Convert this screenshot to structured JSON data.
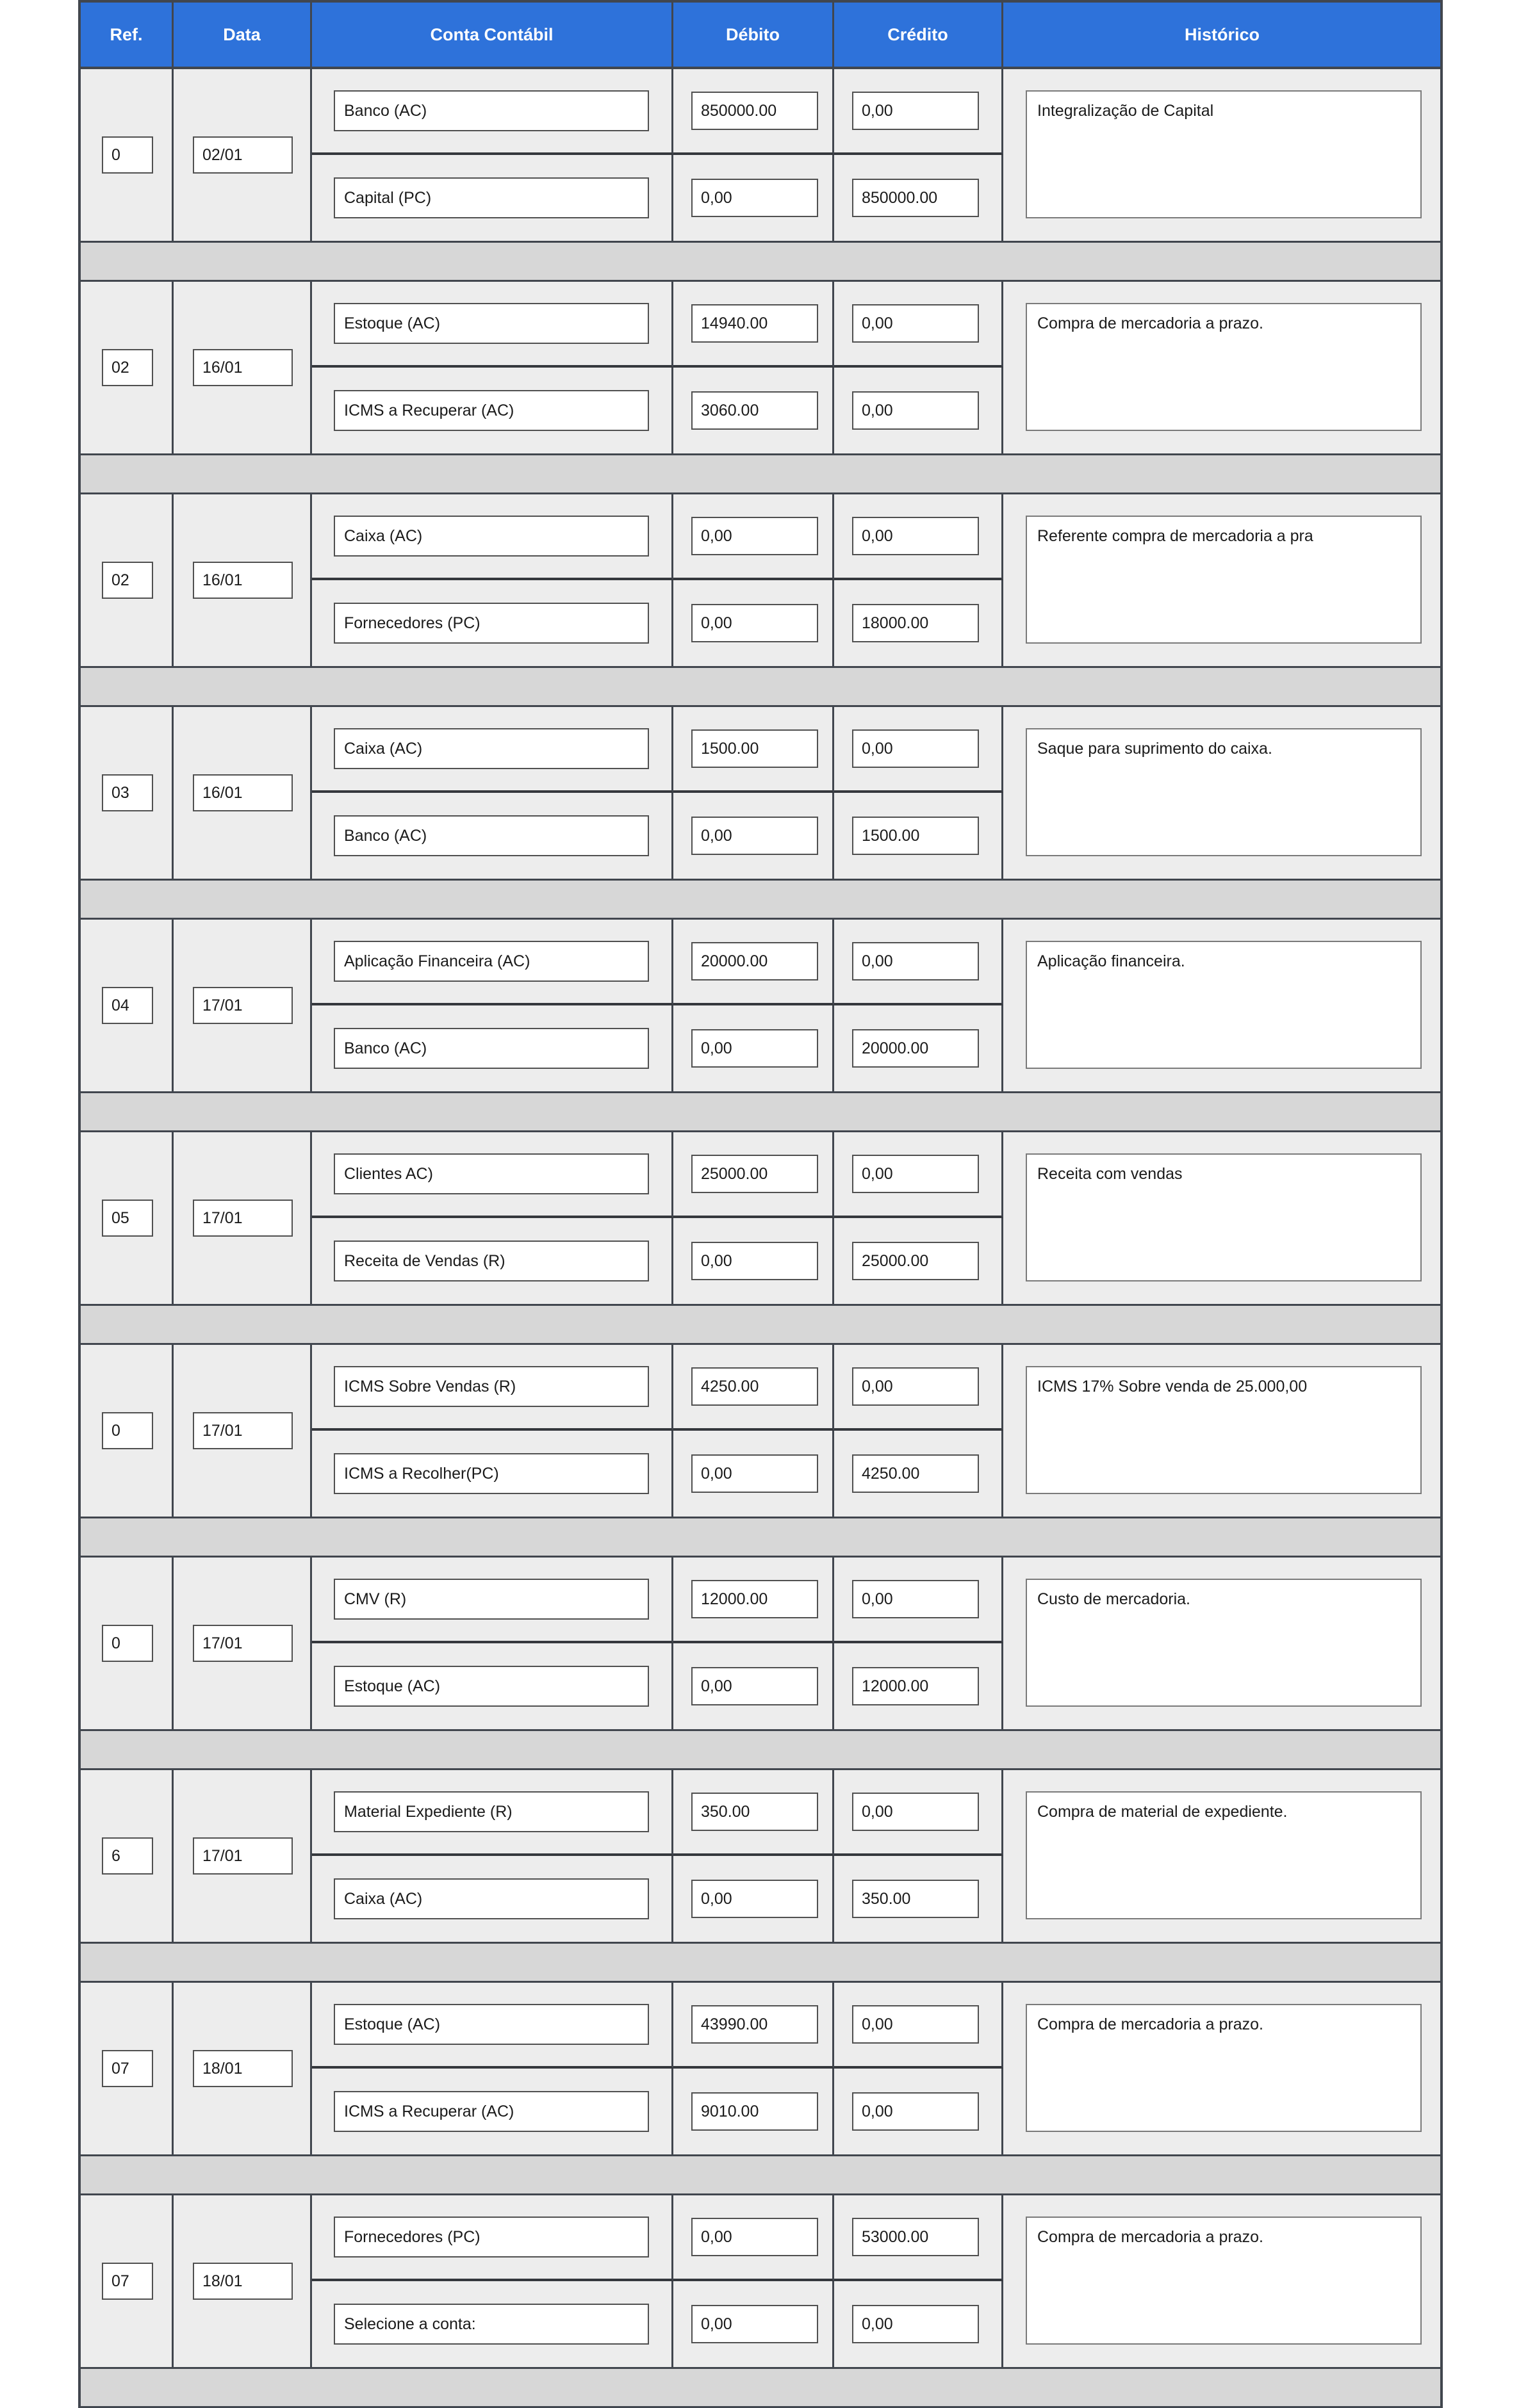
{
  "table": {
    "columns": [
      "Ref.",
      "Data",
      "Conta Contábil",
      "Débito",
      "Crédito",
      "Histórico"
    ],
    "colors": {
      "header_bg": "#2e72da",
      "row_bg": "#ededed",
      "sep_bg": "#d7d7d7",
      "border": "#41464e"
    },
    "entries": [
      {
        "ref": "0",
        "date": "02/01",
        "lines": [
          {
            "account": "Banco (AC)",
            "debit": "850000.00",
            "credit": "0,00"
          },
          {
            "account": "Capital (PC)",
            "debit": "0,00",
            "credit": "850000.00"
          }
        ],
        "history": "Integralização de Capital"
      },
      {
        "ref": "02",
        "date": "16/01",
        "lines": [
          {
            "account": "Estoque (AC)",
            "debit": "14940.00",
            "credit": "0,00"
          },
          {
            "account": "ICMS a Recuperar (AC)",
            "debit": "3060.00",
            "credit": "0,00"
          }
        ],
        "history": "Compra de mercadoria a prazo."
      },
      {
        "ref": "02",
        "date": "16/01",
        "lines": [
          {
            "account": "Caixa (AC)",
            "debit": "0,00",
            "credit": "0,00"
          },
          {
            "account": "Fornecedores (PC)",
            "debit": "0,00",
            "credit": "18000.00"
          }
        ],
        "history": "Referente compra de mercadoria a pra"
      },
      {
        "ref": "03",
        "date": "16/01",
        "lines": [
          {
            "account": "Caixa (AC)",
            "debit": "1500.00",
            "credit": "0,00"
          },
          {
            "account": "Banco (AC)",
            "debit": "0,00",
            "credit": "1500.00"
          }
        ],
        "history": "Saque para suprimento do caixa."
      },
      {
        "ref": "04",
        "date": "17/01",
        "lines": [
          {
            "account": "Aplicação Financeira (AC)",
            "debit": "20000.00",
            "credit": "0,00"
          },
          {
            "account": "Banco (AC)",
            "debit": "0,00",
            "credit": "20000.00"
          }
        ],
        "history": "Aplicação financeira."
      },
      {
        "ref": "05",
        "date": "17/01",
        "lines": [
          {
            "account": "Clientes AC)",
            "debit": "25000.00",
            "credit": "0,00"
          },
          {
            "account": "Receita de Vendas (R)",
            "debit": "0,00",
            "credit": "25000.00"
          }
        ],
        "history": "Receita com vendas"
      },
      {
        "ref": "0",
        "date": "17/01",
        "lines": [
          {
            "account": "ICMS Sobre Vendas (R)",
            "debit": "4250.00",
            "credit": "0,00"
          },
          {
            "account": "ICMS a Recolher(PC)",
            "debit": "0,00",
            "credit": "4250.00"
          }
        ],
        "history": "ICMS 17% Sobre venda de 25.000,00"
      },
      {
        "ref": "0",
        "date": "17/01",
        "lines": [
          {
            "account": "CMV (R)",
            "debit": "12000.00",
            "credit": "0,00"
          },
          {
            "account": "Estoque (AC)",
            "debit": "0,00",
            "credit": "12000.00"
          }
        ],
        "history": "Custo de mercadoria."
      },
      {
        "ref": "6",
        "date": "17/01",
        "lines": [
          {
            "account": "Material Expediente (R)",
            "debit": "350.00",
            "credit": "0,00"
          },
          {
            "account": "Caixa (AC)",
            "debit": "0,00",
            "credit": "350.00"
          }
        ],
        "history": "Compra de material de expediente."
      },
      {
        "ref": "07",
        "date": "18/01",
        "lines": [
          {
            "account": "Estoque (AC)",
            "debit": "43990.00",
            "credit": "0,00"
          },
          {
            "account": "ICMS a Recuperar (AC)",
            "debit": "9010.00",
            "credit": "0,00"
          }
        ],
        "history": "Compra de mercadoria a prazo."
      },
      {
        "ref": "07",
        "date": "18/01",
        "lines": [
          {
            "account": "Fornecedores (PC)",
            "debit": "0,00",
            "credit": "53000.00"
          },
          {
            "account": "Selecione a conta:",
            "debit": "0,00",
            "credit": "0,00"
          }
        ],
        "history": "Compra de mercadoria a prazo."
      }
    ]
  }
}
